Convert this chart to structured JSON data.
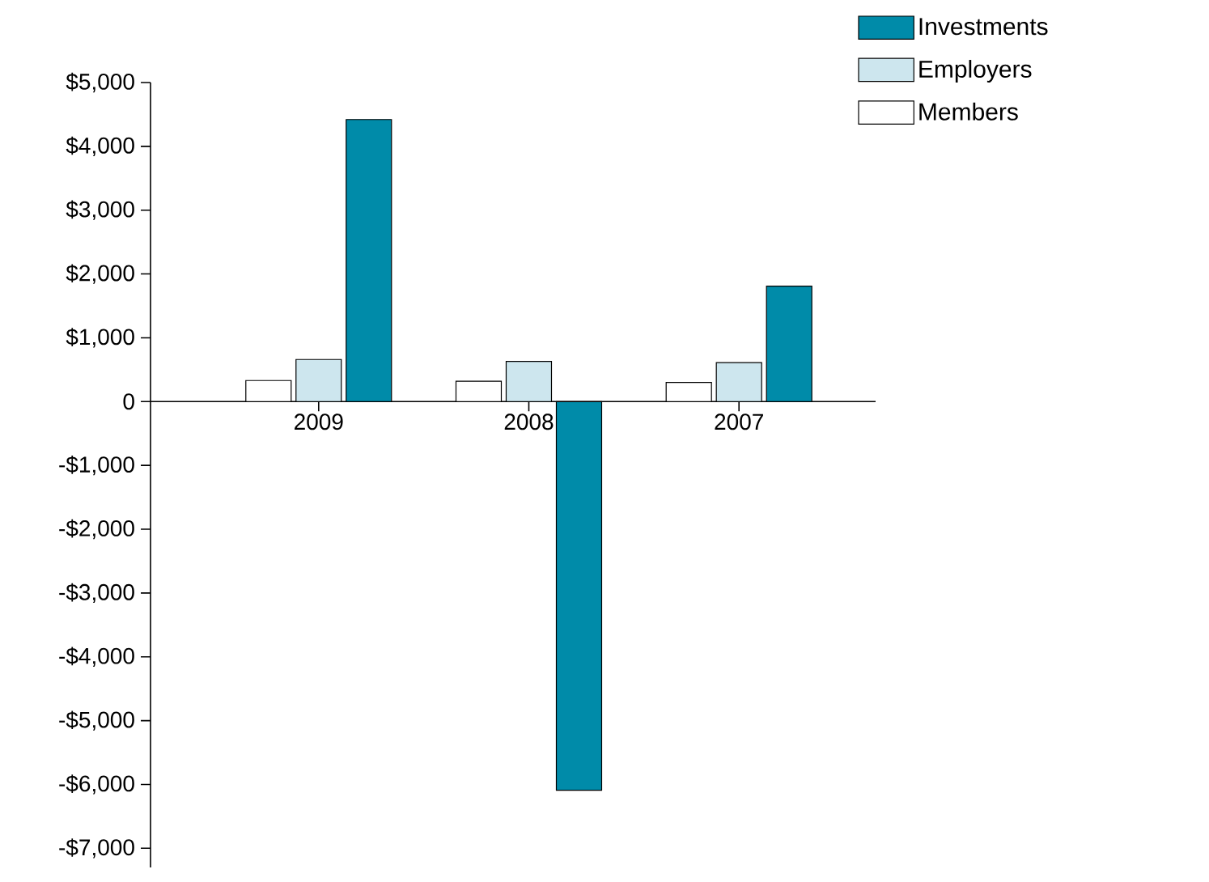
{
  "chart_data": {
    "type": "bar",
    "categories": [
      "2009",
      "2008",
      "2007"
    ],
    "series": [
      {
        "name": "Members",
        "color": "#ffffff",
        "values": [
          330,
          320,
          300
        ]
      },
      {
        "name": "Employers",
        "color": "#cde6ee",
        "values": [
          660,
          630,
          610
        ]
      },
      {
        "name": "Investments",
        "color": "#008ba9",
        "values": [
          4420,
          -6090,
          1810
        ]
      }
    ],
    "ylim": [
      -7300,
      5000
    ],
    "yticks": [
      {
        "value": -7000,
        "label": "-$7,000"
      },
      {
        "value": -6000,
        "label": "-$6,000"
      },
      {
        "value": -5000,
        "label": "-$5,000"
      },
      {
        "value": -4000,
        "label": "-$4,000"
      },
      {
        "value": -3000,
        "label": "-$3,000"
      },
      {
        "value": -2000,
        "label": "-$2,000"
      },
      {
        "value": -1000,
        "label": "-$1,000"
      },
      0,
      {
        "value": 1000,
        "label": "$1,000"
      },
      {
        "value": 2000,
        "label": "$2,000"
      },
      {
        "value": 3000,
        "label": "$3,000"
      },
      {
        "value": 4000,
        "label": "$4,000"
      },
      {
        "value": 5000,
        "label": "$5,000"
      }
    ],
    "legend": "top right"
  }
}
